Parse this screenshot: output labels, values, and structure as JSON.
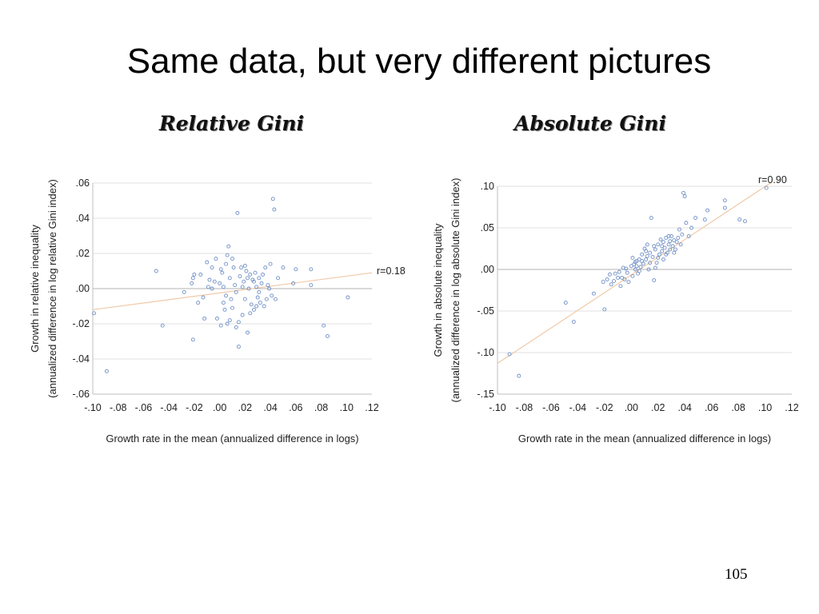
{
  "slide": {
    "title": "Same data, but very different pictures",
    "page_number": "105"
  },
  "colors": {
    "point": "#6f8fc6",
    "trend": "#f0c9a8",
    "grid": "#d9d9d9",
    "axis": "#bfbfbf"
  },
  "chart_data": [
    {
      "type": "scatter",
      "title": "Relative Gini",
      "xlabel": "Growth rate in the mean (annualized difference in logs)",
      "ylabel": "Growth in relative inequality",
      "ylabel2": "(annualized difference in log relative Gini index)",
      "xlim": [
        -0.1,
        0.12
      ],
      "ylim": [
        -0.06,
        0.06
      ],
      "xticks": [
        -0.1,
        -0.08,
        -0.06,
        -0.04,
        -0.02,
        0.0,
        0.02,
        0.04,
        0.06,
        0.08,
        0.1,
        0.12
      ],
      "xtick_labels": [
        "-.10",
        "-.08",
        "-.06",
        "-.04",
        "-.02",
        ".00",
        ".02",
        ".04",
        ".06",
        ".08",
        ".10",
        ".12"
      ],
      "yticks": [
        0.06,
        0.04,
        0.02,
        0.0,
        -0.02,
        -0.04,
        -0.06
      ],
      "ytick_labels": [
        ".06",
        ".04",
        ".02",
        ".00",
        "-.02",
        "-.04",
        "-.06"
      ],
      "grid": true,
      "correlation_label": "r=0.18",
      "trend": {
        "x": [
          -0.1,
          0.12
        ],
        "y": [
          -0.012,
          0.009
        ]
      },
      "points": [
        [
          -0.089,
          -0.047
        ],
        [
          -0.099,
          -0.014
        ],
        [
          -0.05,
          0.01
        ],
        [
          -0.045,
          -0.021
        ],
        [
          -0.021,
          -0.029
        ],
        [
          -0.02,
          0.008
        ],
        [
          -0.021,
          0.006
        ],
        [
          -0.022,
          0.003
        ],
        [
          -0.028,
          -0.002
        ],
        [
          -0.015,
          0.008
        ],
        [
          -0.013,
          -0.005
        ],
        [
          -0.01,
          0.015
        ],
        [
          -0.008,
          0.005
        ],
        [
          -0.006,
          0.0
        ],
        [
          -0.003,
          0.017
        ],
        [
          -0.002,
          -0.017
        ],
        [
          0.0,
          0.003
        ],
        [
          0.001,
          -0.021
        ],
        [
          0.002,
          0.009
        ],
        [
          0.003,
          0.001
        ],
        [
          0.004,
          -0.012
        ],
        [
          0.005,
          0.014
        ],
        [
          0.006,
          0.019
        ],
        [
          0.006,
          -0.02
        ],
        [
          0.007,
          0.024
        ],
        [
          0.008,
          0.006
        ],
        [
          0.009,
          -0.006
        ],
        [
          0.01,
          -0.011
        ],
        [
          0.011,
          0.012
        ],
        [
          0.012,
          0.002
        ],
        [
          0.013,
          -0.002
        ],
        [
          0.014,
          0.043
        ],
        [
          0.015,
          -0.033
        ],
        [
          0.016,
          0.007
        ],
        [
          0.017,
          0.012
        ],
        [
          0.018,
          -0.015
        ],
        [
          0.019,
          0.004
        ],
        [
          0.02,
          -0.006
        ],
        [
          0.021,
          0.01
        ],
        [
          0.022,
          -0.025
        ],
        [
          0.023,
          0.0
        ],
        [
          0.024,
          0.008
        ],
        [
          0.025,
          -0.009
        ],
        [
          0.026,
          0.005
        ],
        [
          0.027,
          -0.012
        ],
        [
          0.028,
          0.009
        ],
        [
          0.029,
          0.001
        ],
        [
          0.03,
          -0.005
        ],
        [
          0.031,
          0.006
        ],
        [
          0.032,
          -0.008
        ],
        [
          0.033,
          0.003
        ],
        [
          0.035,
          -0.01
        ],
        [
          0.036,
          0.012
        ],
        [
          0.038,
          0.002
        ],
        [
          0.04,
          0.014
        ],
        [
          0.041,
          -0.004
        ],
        [
          0.042,
          0.051
        ],
        [
          0.043,
          0.045
        ],
        [
          0.044,
          -0.006
        ],
        [
          0.046,
          0.006
        ],
        [
          0.05,
          0.012
        ],
        [
          0.058,
          0.003
        ],
        [
          0.06,
          0.011
        ],
        [
          0.072,
          0.011
        ],
        [
          0.072,
          0.002
        ],
        [
          0.082,
          -0.021
        ],
        [
          0.085,
          -0.027
        ],
        [
          0.101,
          -0.005
        ],
        [
          -0.004,
          0.004
        ],
        [
          -0.012,
          -0.017
        ],
        [
          -0.006,
          0.012
        ],
        [
          0.003,
          -0.008
        ],
        [
          0.008,
          -0.018
        ],
        [
          0.01,
          0.017
        ],
        [
          0.013,
          -0.022
        ],
        [
          0.018,
          0.001
        ],
        [
          0.02,
          0.013
        ],
        [
          0.024,
          -0.014
        ],
        [
          0.027,
          0.004
        ],
        [
          0.029,
          -0.01
        ],
        [
          0.031,
          -0.002
        ],
        [
          0.034,
          0.008
        ],
        [
          0.037,
          -0.006
        ],
        [
          0.039,
          0.0
        ],
        [
          -0.017,
          -0.008
        ],
        [
          -0.009,
          0.001
        ],
        [
          0.001,
          0.011
        ],
        [
          0.005,
          -0.004
        ],
        [
          0.015,
          -0.019
        ],
        [
          0.022,
          0.006
        ]
      ]
    },
    {
      "type": "scatter",
      "title": "Absolute Gini",
      "xlabel": "Growth rate in the mean (annualized difference in logs)",
      "ylabel": "Growth in absolute inequality",
      "ylabel2": "(annualized difference in log absolute Gini index)",
      "xlim": [
        -0.1,
        0.12
      ],
      "ylim": [
        -0.15,
        0.1
      ],
      "xticks": [
        -0.1,
        -0.08,
        -0.06,
        -0.04,
        -0.02,
        0.0,
        0.02,
        0.04,
        0.06,
        0.08,
        0.1,
        0.12
      ],
      "xtick_labels": [
        "-.10",
        "-.08",
        "-.06",
        "-.04",
        "-.02",
        ".00",
        ".02",
        ".04",
        ".06",
        ".08",
        ".10",
        ".12"
      ],
      "yticks": [
        0.1,
        0.05,
        0.0,
        -0.05,
        -0.1,
        -0.15
      ],
      "ytick_labels": [
        ".10",
        ".05",
        ".00",
        "-.05",
        "-.10",
        "-.15"
      ],
      "grid": true,
      "correlation_label": "r=0.90",
      "trend": {
        "x": [
          -0.1,
          0.105
        ],
        "y": [
          -0.113,
          0.105
        ]
      },
      "points": [
        [
          -0.091,
          -0.102
        ],
        [
          -0.084,
          -0.128
        ],
        [
          -0.049,
          -0.04
        ],
        [
          -0.043,
          -0.063
        ],
        [
          -0.028,
          -0.029
        ],
        [
          -0.02,
          -0.048
        ],
        [
          -0.021,
          -0.015
        ],
        [
          -0.018,
          -0.012
        ],
        [
          -0.015,
          -0.018
        ],
        [
          -0.012,
          -0.005
        ],
        [
          -0.01,
          -0.01
        ],
        [
          -0.008,
          -0.02
        ],
        [
          -0.006,
          0.002
        ],
        [
          -0.005,
          -0.012
        ],
        [
          -0.003,
          -0.004
        ],
        [
          -0.002,
          -0.015
        ],
        [
          0.0,
          0.004
        ],
        [
          0.001,
          -0.008
        ],
        [
          0.002,
          0.006
        ],
        [
          0.003,
          0.0
        ],
        [
          0.004,
          0.01
        ],
        [
          0.005,
          -0.005
        ],
        [
          0.006,
          0.012
        ],
        [
          0.007,
          0.003
        ],
        [
          0.008,
          0.018
        ],
        [
          0.009,
          0.007
        ],
        [
          0.01,
          0.025
        ],
        [
          0.011,
          0.012
        ],
        [
          0.012,
          0.03
        ],
        [
          0.013,
          0.0
        ],
        [
          0.014,
          0.02
        ],
        [
          0.015,
          0.062
        ],
        [
          0.016,
          0.015
        ],
        [
          0.017,
          -0.013
        ],
        [
          0.018,
          0.024
        ],
        [
          0.019,
          0.008
        ],
        [
          0.02,
          0.03
        ],
        [
          0.021,
          0.018
        ],
        [
          0.022,
          0.036
        ],
        [
          0.023,
          0.022
        ],
        [
          0.024,
          0.033
        ],
        [
          0.025,
          0.026
        ],
        [
          0.026,
          0.038
        ],
        [
          0.027,
          0.02
        ],
        [
          0.028,
          0.03
        ],
        [
          0.029,
          0.024
        ],
        [
          0.03,
          0.04
        ],
        [
          0.031,
          0.028
        ],
        [
          0.032,
          0.035
        ],
        [
          0.034,
          0.033
        ],
        [
          0.036,
          0.048
        ],
        [
          0.038,
          0.042
        ],
        [
          0.039,
          0.092
        ],
        [
          0.04,
          0.088
        ],
        [
          0.041,
          0.056
        ],
        [
          0.043,
          0.04
        ],
        [
          0.045,
          0.05
        ],
        [
          0.048,
          0.062
        ],
        [
          0.055,
          0.06
        ],
        [
          0.057,
          0.071
        ],
        [
          0.07,
          0.074
        ],
        [
          0.07,
          0.083
        ],
        [
          0.081,
          0.06
        ],
        [
          0.085,
          0.058
        ],
        [
          0.101,
          0.098
        ],
        [
          -0.013,
          -0.014
        ],
        [
          -0.009,
          -0.003
        ],
        [
          -0.004,
          0.001
        ],
        [
          0.001,
          0.014
        ],
        [
          0.004,
          0.004
        ],
        [
          0.008,
          0.01
        ],
        [
          0.011,
          0.022
        ],
        [
          0.014,
          0.008
        ],
        [
          0.017,
          0.028
        ],
        [
          0.02,
          0.014
        ],
        [
          0.023,
          0.028
        ],
        [
          0.026,
          0.018
        ],
        [
          0.029,
          0.034
        ],
        [
          0.033,
          0.024
        ],
        [
          0.035,
          0.038
        ],
        [
          -0.016,
          -0.006
        ],
        [
          -0.007,
          -0.01
        ],
        [
          0.003,
          0.009
        ],
        [
          0.006,
          -0.002
        ],
        [
          0.012,
          0.016
        ],
        [
          0.018,
          0.002
        ],
        [
          0.024,
          0.012
        ],
        [
          0.028,
          0.04
        ],
        [
          0.032,
          0.02
        ],
        [
          0.037,
          0.03
        ]
      ]
    }
  ]
}
